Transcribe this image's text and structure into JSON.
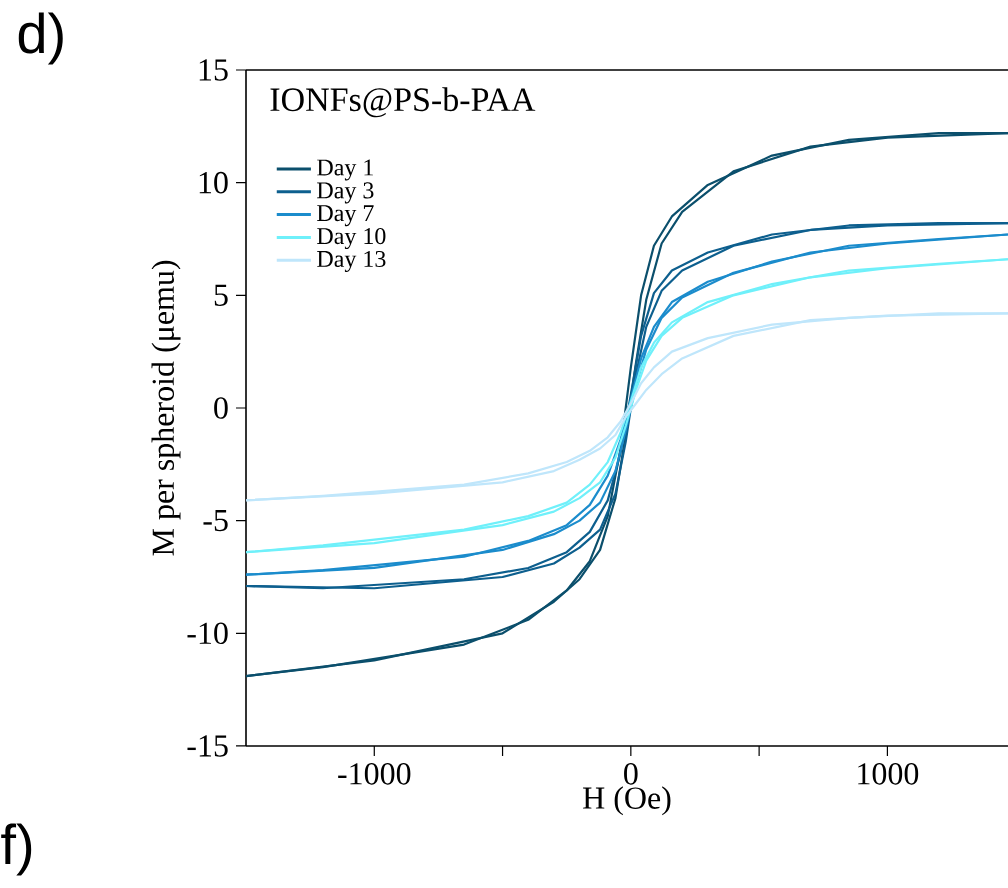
{
  "chart_data": {
    "type": "line",
    "title": "IONFs@PS-b-PAA",
    "xlabel": "H (Oe)",
    "ylabel": "M per spheroid (μemu)",
    "annotations": [
      "d)",
      "f)"
    ],
    "xlim": [
      -1500,
      1470
    ],
    "ylim": [
      -15,
      15
    ],
    "xticks": [
      -1000,
      {
        "value": -500,
        "label": null
      },
      0,
      {
        "value": 500,
        "label": null
      },
      1000
    ],
    "yticks": [
      -15,
      -10,
      -5,
      0,
      5,
      10,
      15
    ],
    "grid": false,
    "legend": "top left",
    "marker": "none",
    "line_style": "solid",
    "series": [
      {
        "name": "Day 1",
        "color": "#0b4f6c",
        "x": [
          -1500,
          -1000,
          -500,
          -300,
          -200,
          -120,
          -60,
          -20,
          20,
          60,
          120,
          200,
          400,
          700,
          1000,
          1470,
          1200,
          850,
          550,
          300,
          160,
          90,
          40,
          0,
          -40,
          -90,
          -160,
          -250,
          -400,
          -650,
          -1200,
          -1500
        ],
        "values": [
          -11.9,
          -11.2,
          -10.0,
          -8.6,
          -7.6,
          -6.3,
          -4.0,
          -1.2,
          2.0,
          4.8,
          7.3,
          8.7,
          10.5,
          11.6,
          12.0,
          12.2,
          12.2,
          11.9,
          11.2,
          9.9,
          8.5,
          7.2,
          5.0,
          1.8,
          -1.8,
          -4.8,
          -6.8,
          -8.1,
          -9.4,
          -10.5,
          -11.5,
          -11.9
        ]
      },
      {
        "name": "Day 3",
        "color": "#0d5f8e",
        "x": [
          -1500,
          -1000,
          -500,
          -300,
          -200,
          -120,
          -60,
          -20,
          20,
          60,
          120,
          200,
          400,
          700,
          1000,
          1470,
          1200,
          850,
          550,
          300,
          160,
          90,
          40,
          0,
          -40,
          -90,
          -160,
          -250,
          -400,
          -650,
          -1200,
          -1500
        ],
        "values": [
          -7.9,
          -8.0,
          -7.5,
          -6.9,
          -6.2,
          -5.4,
          -3.8,
          -1.5,
          1.5,
          3.6,
          5.2,
          6.1,
          7.2,
          7.9,
          8.1,
          8.2,
          8.2,
          8.1,
          7.7,
          6.9,
          6.1,
          5.1,
          3.2,
          0.6,
          -2.0,
          -4.1,
          -5.5,
          -6.4,
          -7.1,
          -7.6,
          -8.0,
          -7.9
        ]
      },
      {
        "name": "Day 7",
        "color": "#1b8ccc",
        "x": [
          -1500,
          -1000,
          -500,
          -300,
          -200,
          -120,
          -60,
          -20,
          20,
          60,
          120,
          200,
          400,
          700,
          1000,
          1470,
          1200,
          850,
          550,
          300,
          160,
          90,
          40,
          0,
          -40,
          -90,
          -160,
          -250,
          -400,
          -650,
          -1200,
          -1500
        ],
        "values": [
          -7.4,
          -7.1,
          -6.3,
          -5.6,
          -5.0,
          -4.2,
          -2.8,
          -1.0,
          1.0,
          2.6,
          4.0,
          4.9,
          6.0,
          6.9,
          7.3,
          7.7,
          7.5,
          7.2,
          6.5,
          5.6,
          4.7,
          3.6,
          2.2,
          0.4,
          -1.4,
          -3.0,
          -4.3,
          -5.2,
          -5.9,
          -6.6,
          -7.2,
          -7.4
        ]
      },
      {
        "name": "Day 10",
        "color": "#6ff0fa",
        "x": [
          -1500,
          -1000,
          -500,
          -300,
          -200,
          -120,
          -60,
          -20,
          20,
          60,
          120,
          200,
          400,
          700,
          1000,
          1470,
          1200,
          850,
          550,
          300,
          160,
          90,
          40,
          0,
          -40,
          -90,
          -160,
          -250,
          -400,
          -650,
          -1200,
          -1500
        ],
        "values": [
          -6.4,
          -6.0,
          -5.2,
          -4.6,
          -4.0,
          -3.3,
          -2.2,
          -0.8,
          0.8,
          2.1,
          3.2,
          4.0,
          5.0,
          5.8,
          6.2,
          6.6,
          6.4,
          6.1,
          5.5,
          4.7,
          3.8,
          2.9,
          1.8,
          0.3,
          -1.1,
          -2.4,
          -3.4,
          -4.2,
          -4.8,
          -5.4,
          -6.1,
          -6.4
        ]
      },
      {
        "name": "Day 13",
        "color": "#bfe6fb",
        "x": [
          -1500,
          -1000,
          -500,
          -300,
          -200,
          -120,
          -60,
          -20,
          20,
          60,
          120,
          200,
          400,
          700,
          1000,
          1470,
          1200,
          850,
          550,
          300,
          160,
          90,
          40,
          0,
          -40,
          -90,
          -160,
          -250,
          -400,
          -650,
          -1200,
          -1500
        ],
        "values": [
          -4.1,
          -3.8,
          -3.3,
          -2.8,
          -2.3,
          -1.8,
          -1.2,
          -0.4,
          0.2,
          0.8,
          1.5,
          2.2,
          3.2,
          3.9,
          4.1,
          4.2,
          4.2,
          4.0,
          3.7,
          3.1,
          2.5,
          1.8,
          1.1,
          0.2,
          -0.6,
          -1.3,
          -1.9,
          -2.4,
          -2.9,
          -3.4,
          -3.9,
          -4.1
        ]
      }
    ]
  }
}
